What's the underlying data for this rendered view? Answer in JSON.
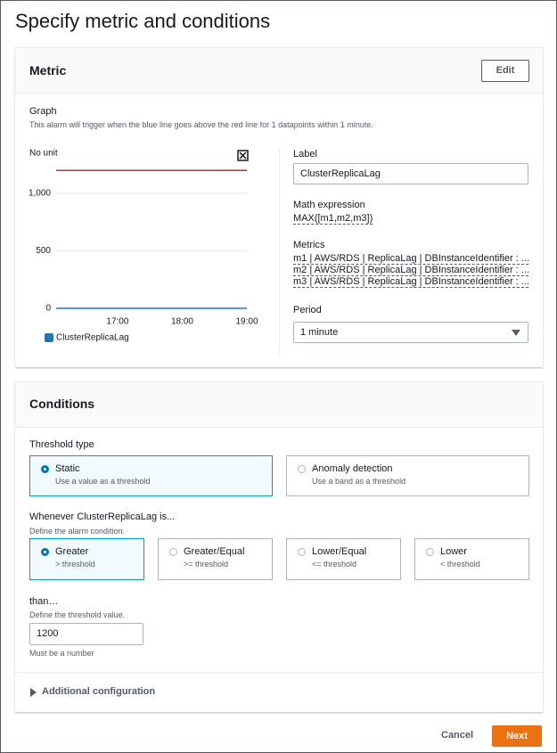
{
  "page_title": "Specify metric and conditions",
  "metric": {
    "heading": "Metric",
    "edit_button": "Edit",
    "graph_heading": "Graph",
    "graph_description": "This alarm will trigger when the blue line goes above the red line for 1 datapoints within 1 minute.",
    "graph": {
      "type": "line",
      "y_label": "No unit",
      "ylim": [
        0,
        1318
      ],
      "yticks": [
        0,
        500,
        {
          "value": 1000,
          "label": "1,000"
        }
      ],
      "xlim": [
        16.05,
        19
      ],
      "xticks": [
        {
          "value": 17,
          "label": "17:00"
        },
        {
          "value": 18,
          "label": "18:00"
        },
        {
          "value": 19,
          "label": "19:00"
        }
      ],
      "series": [
        {
          "name": "ClusterReplicaLag",
          "color": "#1f77b4",
          "x": [
            16.05,
            19
          ],
          "values": [
            0,
            0
          ]
        }
      ],
      "threshold_color": "#d62728",
      "grid": true
    },
    "label_heading": "Label",
    "label_value": "ClusterReplicaLag",
    "math_heading": "Math expression",
    "math_value": "MAX([m1,m2,m3])",
    "metrics_heading": "Metrics",
    "metrics": [
      "m1 | AWS/RDS | ReplicaLag | DBInstanceIdentifier : ...",
      "m2 | AWS/RDS | ReplicaLag | DBInstanceIdentifier : ...",
      "m3 | AWS/RDS | ReplicaLag | DBInstanceIdentifier : ..."
    ],
    "period_heading": "Period",
    "period_value": "1 minute"
  },
  "conditions": {
    "heading": "Conditions",
    "threshold_type_heading": "Threshold type",
    "threshold_types": [
      {
        "title": "Static",
        "description": "Use a value as a threshold",
        "selected": true
      },
      {
        "title": "Anomaly detection",
        "description": "Use a band as a threshold",
        "selected": false
      }
    ],
    "whenever_heading": "Whenever ClusterReplicaLag is...",
    "whenever_description": "Define the alarm condition.",
    "comparisons": [
      {
        "title": "Greater",
        "description": "> threshold",
        "selected": true
      },
      {
        "title": "Greater/Equal",
        "description": ">= threshold",
        "selected": false
      },
      {
        "title": "Lower/Equal",
        "description": "<= threshold",
        "selected": false
      },
      {
        "title": "Lower",
        "description": "< threshold",
        "selected": false
      }
    ],
    "than_heading": "than…",
    "than_description": "Define the threshold value.",
    "threshold_value": 1200,
    "threshold_hint": "Must be a number",
    "additional_configuration": "Additional configuration"
  },
  "footer": {
    "cancel": "Cancel",
    "next": "Next"
  }
}
